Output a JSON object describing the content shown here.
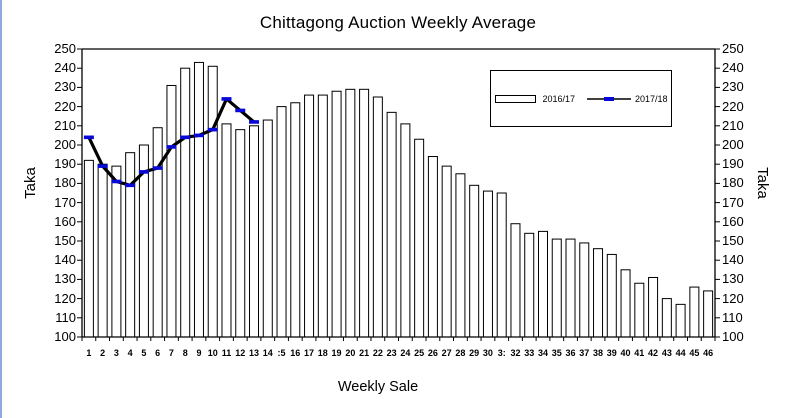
{
  "title": "Chittagong Auction Weekly Average",
  "chart_data": {
    "type": "bar",
    "title": "Chittagong Auction Weekly Average",
    "xlabel": "Weekly Sale",
    "ylabel_left": "Taka",
    "ylabel_right": "Taka",
    "ylim": [
      100,
      250
    ],
    "yticks": [
      100,
      110,
      120,
      130,
      140,
      150,
      160,
      170,
      180,
      190,
      200,
      210,
      220,
      230,
      240,
      250
    ],
    "grid": false,
    "legend_position": "inside-top-right",
    "categories": [
      "1",
      "2",
      "3",
      "4",
      "5",
      "6",
      "7",
      "8",
      "9",
      "10",
      "11",
      "12",
      "13",
      "14",
      ":5",
      "16",
      "17",
      "18",
      "19",
      "20",
      "21",
      "22",
      "23",
      "24",
      "25",
      "26",
      "27",
      "28",
      "29",
      "30",
      "3:",
      "32",
      "33",
      "34",
      "35",
      "36",
      "37",
      "38",
      "39",
      "40",
      "41",
      "42",
      "43",
      "44",
      "45",
      "46"
    ],
    "series": [
      {
        "name": "2016/17",
        "type": "bar",
        "fill": "#ffffff",
        "border_color": "#000000",
        "values": [
          192,
          190,
          189,
          196,
          200,
          209,
          231,
          240,
          243,
          241,
          211,
          208,
          210,
          213,
          220,
          222,
          226,
          226,
          228,
          229,
          229,
          225,
          217,
          211,
          203,
          194,
          189,
          185,
          179,
          176,
          175,
          159,
          154,
          155,
          151,
          151,
          149,
          146,
          143,
          135,
          128,
          131,
          120,
          117,
          126,
          124
        ]
      },
      {
        "name": "2017/18",
        "type": "line",
        "color": "#000000",
        "marker_color": "#0808d8",
        "values": [
          204,
          189,
          181,
          179,
          186,
          188,
          199,
          204,
          205,
          208,
          224,
          218,
          212
        ]
      }
    ]
  },
  "colors": {
    "background": "#ffffff",
    "axis": "#000000",
    "text": "#000000",
    "line_series": "#000000",
    "marker": "#0808d8",
    "bar_fill": "#ffffff",
    "bar_border": "#000000",
    "canvas_left_edge": "#8faadc"
  }
}
